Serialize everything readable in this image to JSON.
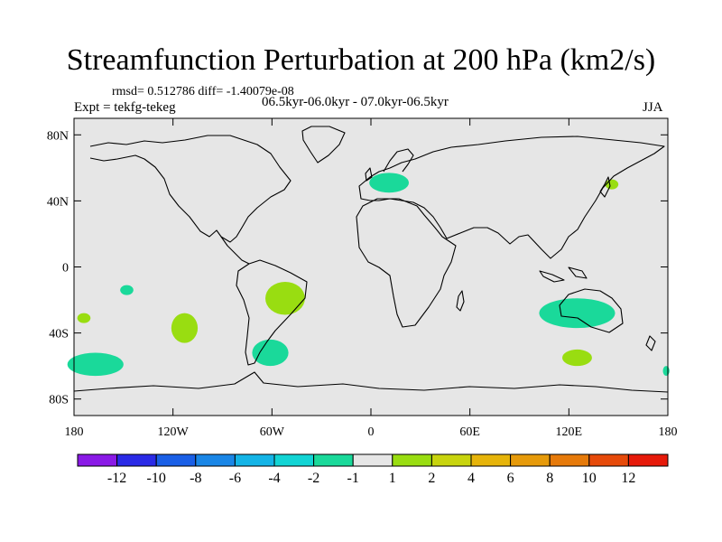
{
  "title": "Streamfunction Perturbation at 200 hPa (km2/s)",
  "stats": "rmsd= 0.512786 diff= -1.40079e-08",
  "experiment": "Expt = tekfg-tekeg",
  "period": "06.5kyr-06.0kyr - 07.0kyr-06.5kyr",
  "season": "JJA",
  "map": {
    "background_color": "#e6e6e6",
    "lat_ticks": [
      {
        "value": 80,
        "label": "80N"
      },
      {
        "value": 40,
        "label": "40N"
      },
      {
        "value": 0,
        "label": "0"
      },
      {
        "value": -40,
        "label": "40S"
      },
      {
        "value": -80,
        "label": "80S"
      }
    ],
    "lon_ticks": [
      {
        "value": -180,
        "label": "180"
      },
      {
        "value": -120,
        "label": "120W"
      },
      {
        "value": -60,
        "label": "60W"
      },
      {
        "value": 0,
        "label": "0"
      },
      {
        "value": 60,
        "label": "60E"
      },
      {
        "value": 120,
        "label": "120E"
      },
      {
        "value": 180,
        "label": "180"
      }
    ],
    "anomalies": [
      {
        "name": "south-pacific-west-negative",
        "lon": -167,
        "lat": -59,
        "rlon": 17,
        "rlat": 7,
        "color": "#1ad99a"
      },
      {
        "name": "south-pacific-small-positive",
        "lon": -174,
        "lat": -31,
        "rlon": 4,
        "rlat": 3,
        "color": "#99dd11"
      },
      {
        "name": "tropical-pacific-negative",
        "lon": -148,
        "lat": -14,
        "rlon": 4,
        "rlat": 3,
        "color": "#1ad99a"
      },
      {
        "name": "south-pacific-positive",
        "lon": -113,
        "lat": -37,
        "rlon": 8,
        "rlat": 9,
        "color": "#99dd11"
      },
      {
        "name": "south-america-positive",
        "lon": -52,
        "lat": -19,
        "rlon": 12,
        "rlat": 10,
        "color": "#99dd11"
      },
      {
        "name": "south-atlantic-negative",
        "lon": -61,
        "lat": -52,
        "rlon": 11,
        "rlat": 8,
        "color": "#1ad99a"
      },
      {
        "name": "europe-negative",
        "lon": 11,
        "lat": 51,
        "rlon": 12,
        "rlat": 6,
        "color": "#1ad99a"
      },
      {
        "name": "east-asia-positive",
        "lon": 146,
        "lat": 50,
        "rlon": 4,
        "rlat": 3,
        "color": "#99dd11"
      },
      {
        "name": "australia-negative",
        "lon": 125,
        "lat": -28,
        "rlon": 23,
        "rlat": 9,
        "color": "#1ad99a"
      },
      {
        "name": "southern-ocean-positive",
        "lon": 125,
        "lat": -55,
        "rlon": 9,
        "rlat": 5,
        "color": "#99dd11"
      },
      {
        "name": "southern-ocean-east-negative",
        "lon": 179,
        "lat": -63,
        "rlon": 2,
        "rlat": 3,
        "color": "#1ad99a"
      }
    ]
  },
  "colorbar": {
    "colors": [
      "#8a1ae6",
      "#2a2ae6",
      "#1a5fe6",
      "#1a86e6",
      "#14b4e6",
      "#12d4d4",
      "#1ad99a",
      "#e6e6e6",
      "#99dd11",
      "#c8d40e",
      "#e6b40a",
      "#e69a0a",
      "#e67a0a",
      "#e64a0a",
      "#e61a0a"
    ],
    "labels": [
      "-12",
      "-10",
      "-8",
      "-6",
      "-4",
      "-2",
      "-1",
      "1",
      "2",
      "4",
      "6",
      "8",
      "10",
      "12"
    ]
  }
}
